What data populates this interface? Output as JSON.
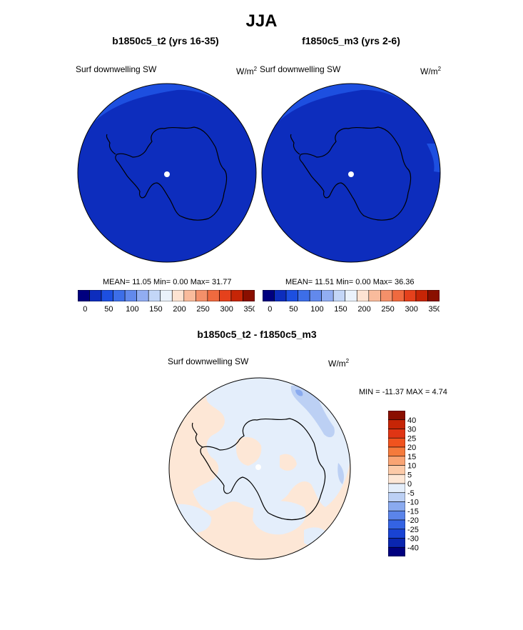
{
  "figure": {
    "title": "JJA"
  },
  "panels": [
    {
      "title": "b1850c5_t2 (yrs 16-35)",
      "variable": "Surf downwelling SW",
      "units": "W/m",
      "units_sup": "2",
      "stats_text": "MEAN=  11.05  Min=    0.00  Max=   31.77",
      "colorbar": {
        "ticks": [
          "0",
          "50",
          "100",
          "150",
          "200",
          "250",
          "300",
          "350"
        ],
        "colors": [
          "#00007f",
          "#0d2dbd",
          "#1d4fe0",
          "#3d6ee8",
          "#6289ec",
          "#91adf2",
          "#c3d6f7",
          "#eaf2fb",
          "#fde3d2",
          "#f9bb9c",
          "#f4906a",
          "#ef6a3f",
          "#e5411c",
          "#c62506",
          "#8a0f00"
        ]
      }
    },
    {
      "title": "f1850c5_m3 (yrs 2-6)",
      "variable": "Surf downwelling SW",
      "units": "W/m",
      "units_sup": "2",
      "stats_text": "MEAN=  11.51  Min=    0.00  Max=   36.36",
      "colorbar": {
        "ticks": [
          "0",
          "50",
          "100",
          "150",
          "200",
          "250",
          "300",
          "350"
        ],
        "colors": [
          "#00007f",
          "#0d2dbd",
          "#1d4fe0",
          "#3d6ee8",
          "#6289ec",
          "#91adf2",
          "#c3d6f7",
          "#eaf2fb",
          "#fde3d2",
          "#f9bb9c",
          "#f4906a",
          "#ef6a3f",
          "#e5411c",
          "#c62506",
          "#8a0f00"
        ]
      }
    },
    {
      "title": "b1850c5_t2 - f1850c5_m3",
      "variable": "Surf downwelling SW",
      "units": "W/m",
      "units_sup": "2",
      "stats_text": "MIN = -11.37 MAX =   4.74",
      "colorbar": {
        "ticks": [
          "40",
          "30",
          "25",
          "20",
          "15",
          "10",
          "5",
          "0",
          "-5",
          "-10",
          "-15",
          "-20",
          "-25",
          "-30",
          "-40"
        ],
        "colors": [
          "#8a0f00",
          "#c62506",
          "#e03514",
          "#f0531e",
          "#f57a3c",
          "#f9a474",
          "#fccaa8",
          "#fde7d6",
          "#e4eefb",
          "#bcd0f4",
          "#8aaaef",
          "#5b84ea",
          "#3463e3",
          "#1943d4",
          "#0a26b0",
          "#00007f"
        ]
      }
    }
  ],
  "chart_data": [
    {
      "type": "heatmap",
      "projection": "south polar stereographic",
      "title": "b1850c5_t2 (yrs 16-35)",
      "variable": "Surf downwelling SW",
      "units": "W/m2",
      "mean": 11.05,
      "min": 0.0,
      "max": 31.77,
      "colorbar_levels": [
        0,
        25,
        50,
        75,
        100,
        125,
        150,
        175,
        200,
        225,
        250,
        275,
        300,
        325,
        350
      ],
      "field_description": "values near 0 over almost the entire domain, slightly higher (25-50) at the outer rim",
      "marker": "white dot at South Pole"
    },
    {
      "type": "heatmap",
      "projection": "south polar stereographic",
      "title": "f1850c5_m3 (yrs 2-6)",
      "variable": "Surf downwelling SW",
      "units": "W/m2",
      "mean": 11.51,
      "min": 0.0,
      "max": 36.36,
      "colorbar_levels": [
        0,
        25,
        50,
        75,
        100,
        125,
        150,
        175,
        200,
        225,
        250,
        275,
        300,
        325,
        350
      ],
      "field_description": "values near 0 over almost the entire domain, slightly higher (25-50) at the outer rim",
      "marker": "white dot at South Pole"
    },
    {
      "type": "heatmap",
      "projection": "south polar stereographic",
      "title": "b1850c5_t2 - f1850c5_m3",
      "variable": "Surf downwelling SW",
      "units": "W/m2",
      "min": -11.37,
      "max": 4.74,
      "colorbar_levels": [
        -40,
        -30,
        -25,
        -20,
        -15,
        -10,
        -5,
        0,
        5,
        10,
        15,
        20,
        25,
        30,
        40
      ],
      "field_description": "mix of 0 to 5 (light orange) and -5 to 0 (light blue); small patches of -5 to -10 near the outer rim",
      "marker": "white dot at South Pole"
    }
  ]
}
